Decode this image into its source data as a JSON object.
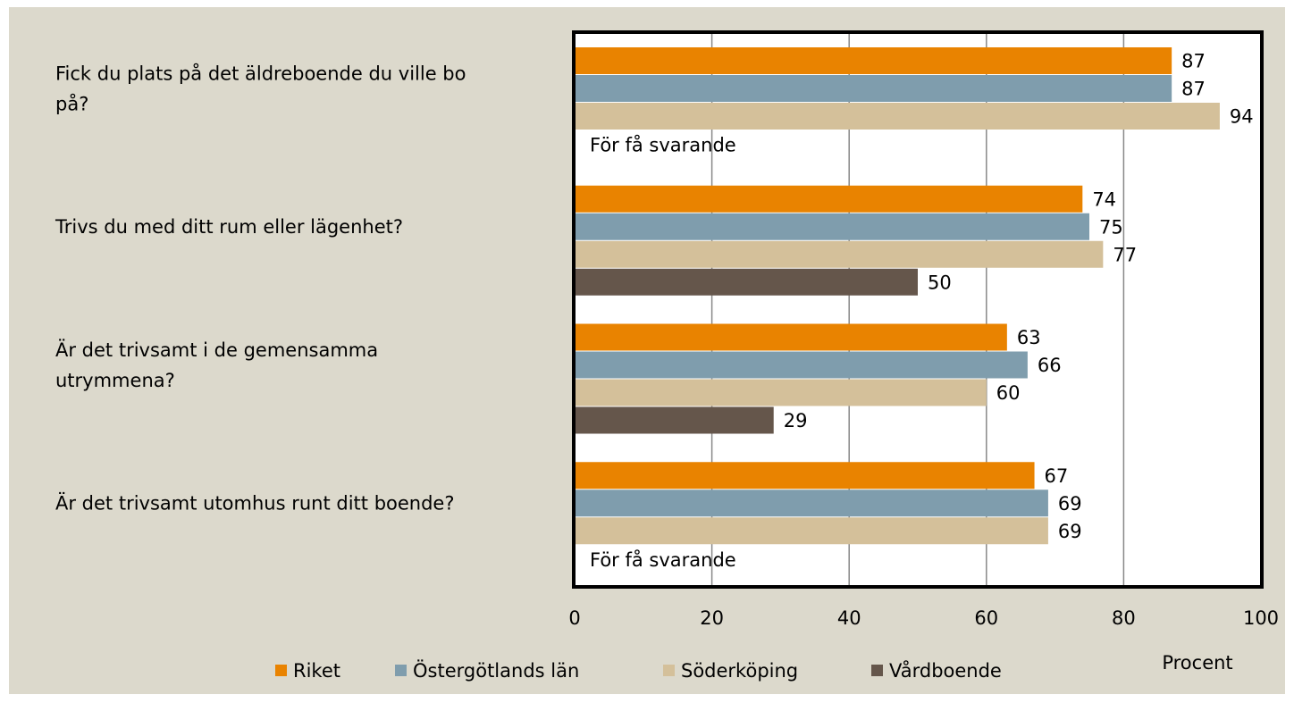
{
  "chart_data": {
    "type": "barh",
    "categories": [
      "Fick du plats på det äldreboende du ville bo på?",
      "Trivs du med ditt rum eller lägenhet?",
      "Är det trivsamt i de gemensamma utrymmena?",
      "Är det trivsamt utomhus runt ditt boende?"
    ],
    "series": [
      {
        "name": "Riket",
        "color": "#e98300",
        "values": [
          87,
          74,
          63,
          67
        ]
      },
      {
        "name": "Östergötlands län",
        "color": "#7f9dad",
        "values": [
          87,
          75,
          66,
          69
        ]
      },
      {
        "name": "Söderköping",
        "color": "#d4c09a",
        "values": [
          94,
          77,
          60,
          69
        ]
      },
      {
        "name": "Vårdboende",
        "color": "#65564b",
        "values": [
          null,
          50,
          29,
          null
        ],
        "value_labels": [
          "För få svarande",
          "50",
          "29",
          "För få svarande"
        ]
      }
    ],
    "xlim": [
      0,
      100
    ],
    "xticks": [
      0,
      20,
      40,
      60,
      80,
      100
    ],
    "xlabel": "Procent",
    "grid": true
  }
}
